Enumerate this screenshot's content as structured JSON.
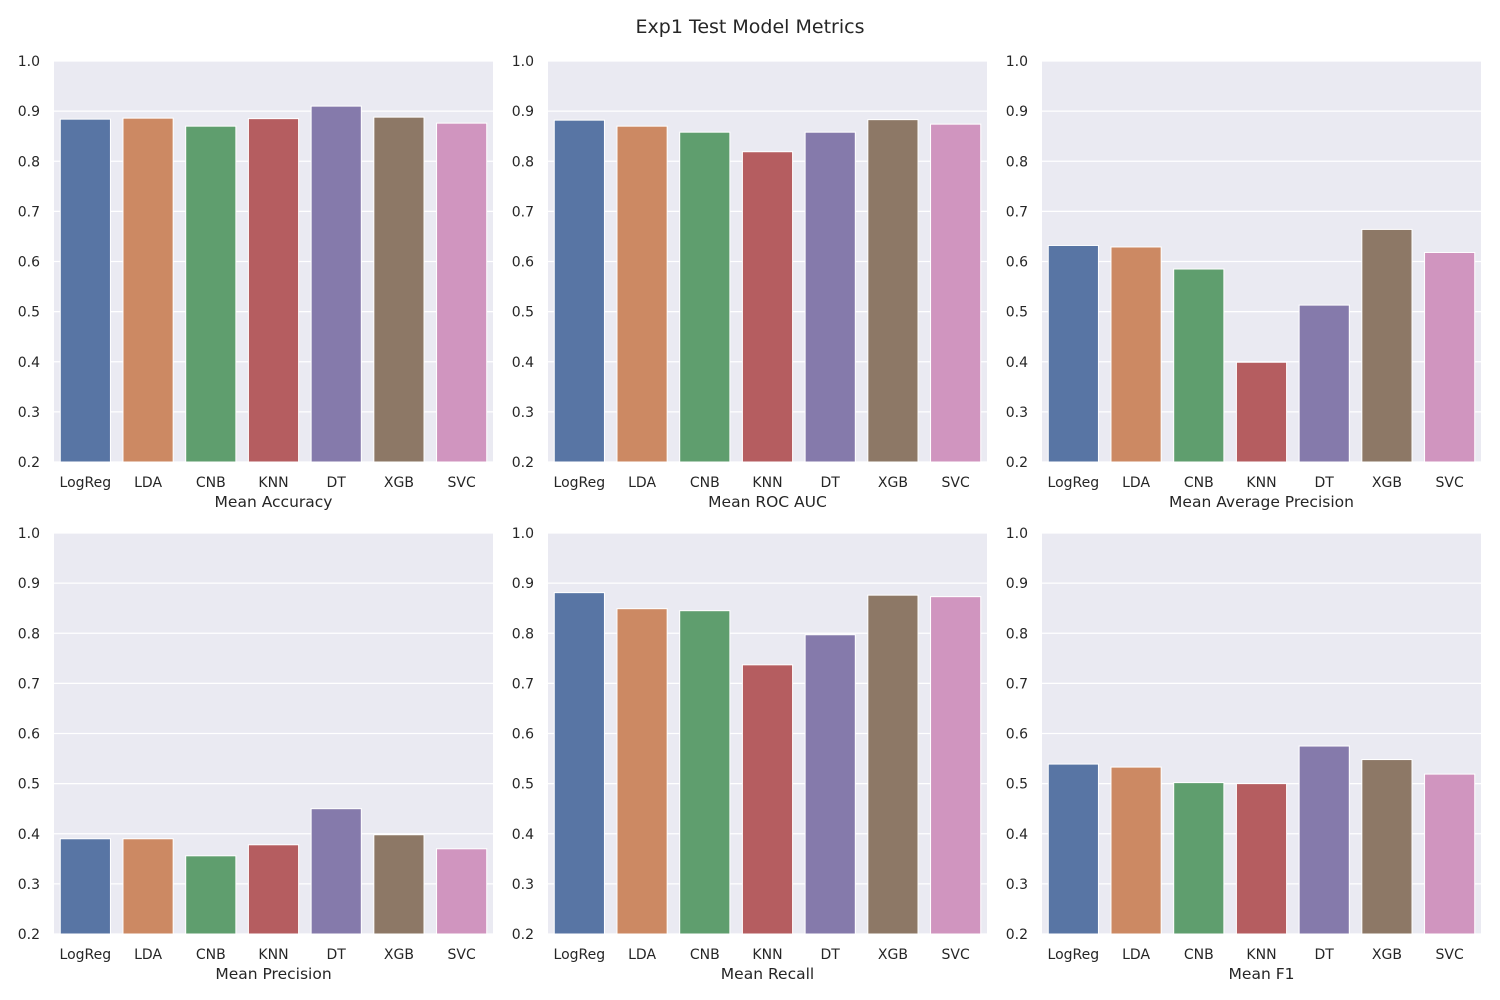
{
  "figure": {
    "title": "Exp1 Test Model Metrics"
  },
  "chart_data": [
    {
      "type": "bar",
      "title": "",
      "xlabel": "Mean Accuracy",
      "ylabel": "",
      "ylim": [
        0.2,
        1.0
      ],
      "yticks": [
        "0.2",
        "0.3",
        "0.4",
        "0.5",
        "0.6",
        "0.7",
        "0.8",
        "0.9",
        "1.0"
      ],
      "grid": true,
      "categories": [
        "LogReg",
        "LDA",
        "CNB",
        "KNN",
        "DT",
        "XGB",
        "SVC"
      ],
      "values": [
        0.884,
        0.886,
        0.87,
        0.885,
        0.91,
        0.888,
        0.876
      ]
    },
    {
      "type": "bar",
      "title": "",
      "xlabel": "Mean ROC AUC",
      "ylabel": "",
      "ylim": [
        0.2,
        1.0
      ],
      "yticks": [
        "0.2",
        "0.3",
        "0.4",
        "0.5",
        "0.6",
        "0.7",
        "0.8",
        "0.9",
        "1.0"
      ],
      "grid": true,
      "categories": [
        "LogReg",
        "LDA",
        "CNB",
        "KNN",
        "DT",
        "XGB",
        "SVC"
      ],
      "values": [
        0.882,
        0.87,
        0.858,
        0.819,
        0.858,
        0.883,
        0.874
      ]
    },
    {
      "type": "bar",
      "title": "",
      "xlabel": "Mean Average Precision",
      "ylabel": "",
      "ylim": [
        0.2,
        1.0
      ],
      "yticks": [
        "0.2",
        "0.3",
        "0.4",
        "0.5",
        "0.6",
        "0.7",
        "0.8",
        "0.9",
        "1.0"
      ],
      "grid": true,
      "categories": [
        "LogReg",
        "LDA",
        "CNB",
        "KNN",
        "DT",
        "XGB",
        "SVC"
      ],
      "values": [
        0.632,
        0.629,
        0.585,
        0.399,
        0.513,
        0.664,
        0.618
      ]
    },
    {
      "type": "bar",
      "title": "",
      "xlabel": "Mean Precision",
      "ylabel": "",
      "ylim": [
        0.2,
        1.0
      ],
      "yticks": [
        "0.2",
        "0.3",
        "0.4",
        "0.5",
        "0.6",
        "0.7",
        "0.8",
        "0.9",
        "1.0"
      ],
      "grid": true,
      "categories": [
        "LogReg",
        "LDA",
        "CNB",
        "KNN",
        "DT",
        "XGB",
        "SVC"
      ],
      "values": [
        0.39,
        0.39,
        0.356,
        0.378,
        0.45,
        0.398,
        0.37
      ]
    },
    {
      "type": "bar",
      "title": "",
      "xlabel": "Mean Recall",
      "ylabel": "",
      "ylim": [
        0.2,
        1.0
      ],
      "yticks": [
        "0.2",
        "0.3",
        "0.4",
        "0.5",
        "0.6",
        "0.7",
        "0.8",
        "0.9",
        "1.0"
      ],
      "grid": true,
      "categories": [
        "LogReg",
        "LDA",
        "CNB",
        "KNN",
        "DT",
        "XGB",
        "SVC"
      ],
      "values": [
        0.881,
        0.849,
        0.845,
        0.737,
        0.797,
        0.876,
        0.873
      ]
    },
    {
      "type": "bar",
      "title": "",
      "xlabel": "Mean F1",
      "ylabel": "",
      "ylim": [
        0.2,
        1.0
      ],
      "yticks": [
        "0.2",
        "0.3",
        "0.4",
        "0.5",
        "0.6",
        "0.7",
        "0.8",
        "0.9",
        "1.0"
      ],
      "grid": true,
      "categories": [
        "LogReg",
        "LDA",
        "CNB",
        "KNN",
        "DT",
        "XGB",
        "SVC"
      ],
      "values": [
        0.539,
        0.533,
        0.502,
        0.5,
        0.575,
        0.548,
        0.519
      ]
    }
  ],
  "colors": {
    "plot_background": "#eaeaf2",
    "grid": "#ffffff",
    "bars": [
      "#5875a4",
      "#cc8963",
      "#5f9e6e",
      "#b55d60",
      "#857aab",
      "#8d7866",
      "#d095bf"
    ]
  }
}
